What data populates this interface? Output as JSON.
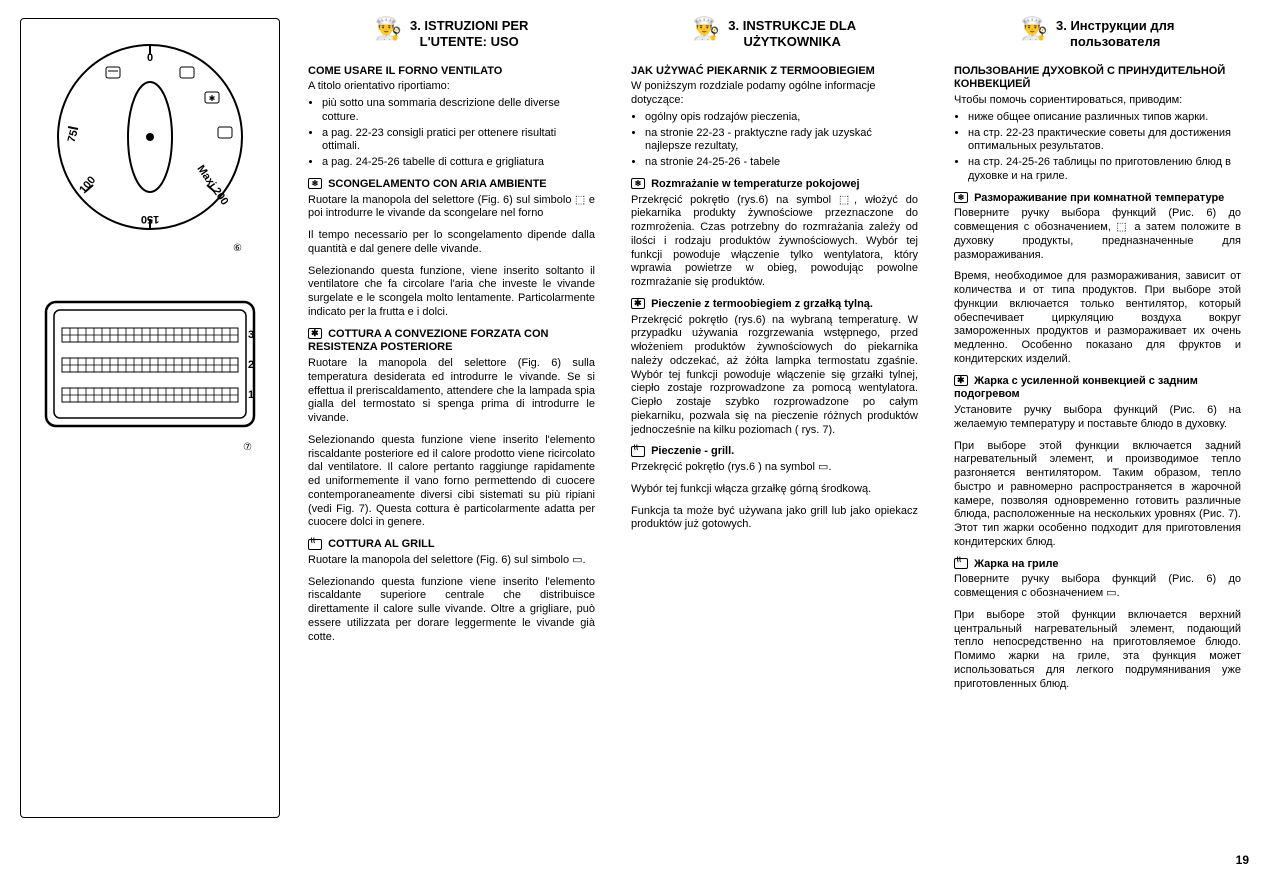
{
  "page_number": "19",
  "figures": {
    "fig6_label": "⑥",
    "fig7_label": "⑦",
    "dial_marks": [
      "0",
      "75",
      "100",
      "150",
      "Maxi 200"
    ],
    "oven_rack_labels": [
      "3",
      "2",
      "1"
    ]
  },
  "columns": [
    {
      "lang": "it",
      "title_line1": "3. ISTRUZIONI PER",
      "title_line2": "L'UTENTE: USO",
      "intro_heading": "COME USARE IL FORNO VENTILATO",
      "intro_line": "A titolo orientativo riportiamo:",
      "bullets": [
        "più sotto una sommaria descrizione delle diverse cotture.",
        "a pag. 22-23 consigli pratici per ottenere risultati ottimali.",
        "a pag. 24-25-26 tabelle di cottura e grigliatura"
      ],
      "sections": [
        {
          "icon": "defrost",
          "heading": "SCONGELAMENTO CON ARIA AMBIENTE",
          "paras": [
            "Ruotare la manopola del selettore (Fig. 6) sul simbolo ⬚ e poi introdurre le vivande da scongelare nel forno",
            "Il tempo necessario per lo scongelamento dipende dalla quantità e dal genere delle vivande.",
            "Selezionando questa funzione, viene inserito soltanto il ventilatore che fa circolare l'aria che investe le vivande surgelate e le scongela molto lentamente. Particolarmente indicato per la frutta e i dolci."
          ]
        },
        {
          "icon": "fan",
          "heading": "COTTURA A CONVEZIONE FORZATA CON RESISTENZA POSTERIORE",
          "paras": [
            "Ruotare la manopola del selettore (Fig. 6) sulla temperatura desiderata ed introdurre le vivande. Se si effettua il preriscaldamento, attendere che la lampada spia gialla del termostato si spenga prima di introdurre le vivande.",
            "Selezionando questa funzione viene inserito l'elemento riscaldante posteriore ed il calore prodotto viene ricircolato dal ventilatore. Il calore pertanto raggiunge rapidamente ed uniformemente il vano forno permettendo di cuocere contemporaneamente diversi cibi sistemati su più ripiani (vedi Fig. 7). Questa cottura è particolarmente adatta per cuocere dolci in genere."
          ]
        },
        {
          "icon": "grill",
          "heading": "COTTURA AL GRILL",
          "paras": [
            "Ruotare la manopola del selettore (Fig. 6) sul simbolo ▭.",
            "Selezionando questa funzione viene inserito l'elemento riscaldante superiore centrale che distribuisce direttamente il calore sulle vivande. Oltre a grigliare, può essere utilizzata per dorare leggermente le vivande già cotte."
          ]
        }
      ]
    },
    {
      "lang": "pl",
      "title_line1": "3. INSTRUKCJE DLA",
      "title_line2": "UŻYTKOWNIKA",
      "intro_heading": "JAK UŻYWAĆ PIEKARNIK Z TERMOOBIEGIEM",
      "intro_line": "W poniższym rozdziale podamy ogólne informacje dotyczące:",
      "bullets": [
        "ogólny opis rodzajów pieczenia,",
        "na stronie 22-23 - praktyczne rady jak uzyskać najlepsze rezultaty,",
        "na stronie 24-25-26 - tabele"
      ],
      "sections": [
        {
          "icon": "defrost",
          "heading": "Rozmrażanie w temperaturze pokojowej",
          "paras": [
            "Przekręcić pokrętło (rys.6) na symbol ⬚, włożyć do piekarnika produkty żywnościowe przeznaczone do rozmrożenia. Czas potrzebny do rozmrażania zależy od ilości i rodzaju produktów żywnościowych. Wybór tej funkcji powoduje włączenie tylko wentylatora, który wprawia powietrze w obieg, powodując powolne rozmrażanie się produktów."
          ]
        },
        {
          "icon": "fan",
          "heading": "Pieczenie z termoobiegiem z grzałką tylną.",
          "paras": [
            "Przekręcić pokrętło (rys.6) na wybraną temperaturę. W przypadku używania rozgrzewania wstępnego, przed włożeniem produktów żywnościowych do piekarnika należy odczekać, aż żółta lampka termostatu zgaśnie. Wybór tej funkcji powoduje włączenie się grzałki tylnej, ciepło zostaje rozprowadzone za pomocą wentylatora. Ciepło zostaje szybko rozprowadzone po całym piekarniku, pozwala się na pieczenie różnych produktów jednocześnie na kilku poziomach ( rys. 7)."
          ]
        },
        {
          "icon": "grill",
          "heading": "Pieczenie - grill.",
          "paras": [
            "Przekręcić pokrętło (rys.6 ) na symbol ▭.",
            "Wybór tej funkcji włącza grzałkę górną środkową.",
            "Funkcja ta może być używana jako grill lub jako opiekacz produktów już gotowych."
          ]
        }
      ]
    },
    {
      "lang": "ru",
      "title_line1": "3. Инструкции для",
      "title_line2": "пользователя",
      "intro_heading": "ПОЛЬЗОВАНИЕ ДУХОВКОЙ С ПРИНУДИТЕЛЬНОЙ КОНВЕКЦИЕЙ",
      "intro_line": "Чтобы помочь сориентироваться, приводим:",
      "bullets": [
        "ниже общее описание различных типов жарки.",
        "на стр. 22-23 практические советы для достижения оптимальных результатов.",
        "на стр. 24-25-26 таблицы по приготовлению блюд в духовке и на гриле."
      ],
      "sections": [
        {
          "icon": "defrost",
          "heading": "Размораживание при комнатной температуре",
          "paras": [
            "Поверните ручку выбора функций (Рис. 6) до совмещения с обозначением, ⬚ а затем положите в духовку продукты, предназначенные для размораживания.",
            "Время, необходимое для размораживания, зависит от количества и от типа продуктов. При выборе этой функции включается только вентилятор, который обеспечивает циркуляцию воздуха вокруг замороженных продуктов и размораживает их очень медленно. Особенно показано для фруктов и кондитерских изделий."
          ]
        },
        {
          "icon": "fan",
          "heading": "Жарка с усиленной конвекцией с задним подогревом",
          "paras": [
            "Установите ручку выбора функций (Рис. 6) на желаемую температуру и поставьте блюдо в духовку.",
            "При выборе этой функции включается задний нагревательный элемент, и производимое тепло разгоняется вентилятором. Таким образом, тепло быстро и равномерно распространяется в жарочной камере, позволяя одновременно готовить различные блюда, расположенные на нескольких уровнях (Рис. 7). Этот тип жарки особенно подходит для приготовления кондитерских блюд."
          ]
        },
        {
          "icon": "grill",
          "heading": "Жарка на гриле",
          "paras": [
            "Поверните ручку выбора функций (Рис. 6) до совмещения с обозначением ▭.",
            "При выборе этой функции включается верхний центральный нагревательный элемент, подающий тепло непосредственно на приготовляемое блюдо. Помимо жарки на гриле, эта функция может использоваться для легкого подрумянивания уже приготовленных блюд."
          ]
        }
      ]
    }
  ]
}
